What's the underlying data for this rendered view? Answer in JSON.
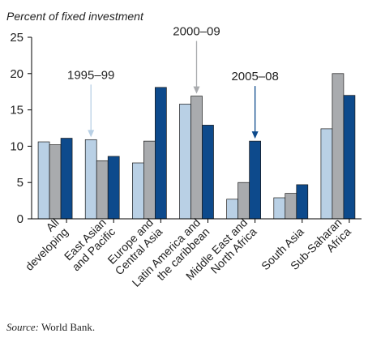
{
  "chart_data": {
    "type": "bar",
    "ylabel": "Percent of fixed investment",
    "ylim": [
      0,
      25
    ],
    "yticks": [
      0,
      5,
      10,
      15,
      20,
      25
    ],
    "grid": false,
    "categories": [
      [
        "All",
        "developing"
      ],
      [
        "East Asian",
        "and Pacific"
      ],
      [
        "Europe and",
        "Central Asia"
      ],
      [
        "Latin America and",
        "the caribbean"
      ],
      [
        "Middle East and",
        "North Africa"
      ],
      [
        "South Asia"
      ],
      [
        "Sub-Saharan",
        "Africa"
      ]
    ],
    "series": [
      {
        "name": "1995–99",
        "color": "#b9d0e5",
        "values": [
          10.6,
          10.9,
          7.7,
          15.8,
          2.7,
          2.9,
          12.4
        ]
      },
      {
        "name": "2000–09",
        "color": "#a9abae",
        "values": [
          10.2,
          8.0,
          10.7,
          16.9,
          5.0,
          3.5,
          20.0
        ]
      },
      {
        "name": "2005–08",
        "color": "#0d4a8c",
        "values": [
          11.1,
          8.6,
          18.1,
          12.9,
          10.7,
          4.7,
          17.0
        ]
      }
    ],
    "annotations": [
      {
        "text": "1995–99",
        "series": 0,
        "category": 1
      },
      {
        "text": "2000–09",
        "series": 1,
        "category": 3
      },
      {
        "text": "2005–08",
        "series": 2,
        "category": 4
      }
    ]
  },
  "source": {
    "label": "Source:",
    "text": "World Bank."
  }
}
